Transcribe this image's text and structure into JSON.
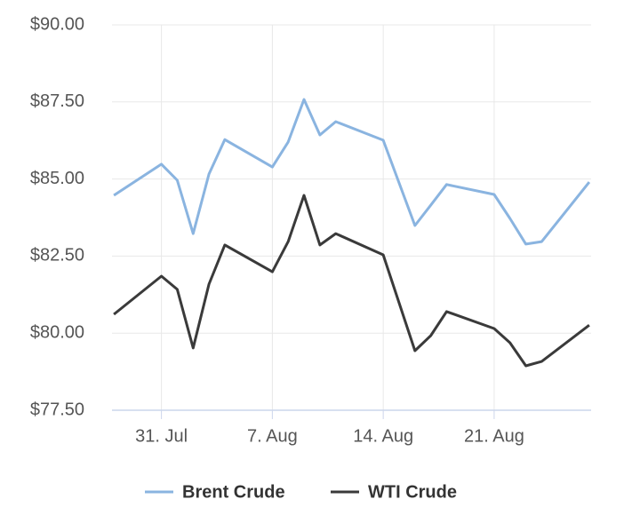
{
  "chart_data": {
    "type": "line",
    "x": [
      "07-28",
      "07-31",
      "08-01",
      "08-02",
      "08-03",
      "08-04",
      "08-07",
      "08-08",
      "08-09",
      "08-10",
      "08-11",
      "08-14",
      "08-16",
      "08-17",
      "08-18",
      "08-21",
      "08-22",
      "08-23",
      "08-24",
      "08-27"
    ],
    "xlim": [
      "07-28",
      "08-27"
    ],
    "xticks": [
      {
        "value": "07-31",
        "label": "31. Jul"
      },
      {
        "value": "08-07",
        "label": "7. Aug"
      },
      {
        "value": "08-14",
        "label": "14. Aug"
      },
      {
        "value": "08-21",
        "label": "21. Aug"
      }
    ],
    "ylim": [
      77.5,
      90
    ],
    "yticks": [
      {
        "value": 77.5,
        "label": "$77.50"
      },
      {
        "value": 80,
        "label": "$80.00"
      },
      {
        "value": 82.5,
        "label": "$82.50"
      },
      {
        "value": 85,
        "label": "$85.00"
      },
      {
        "value": 87.5,
        "label": "$87.50"
      },
      {
        "value": 90,
        "label": "$90.00"
      }
    ],
    "grid": true,
    "legend": "bottom",
    "series": [
      {
        "name": "Brent Crude",
        "color": "#8ab4e0",
        "values": [
          84.47,
          85.48,
          84.96,
          83.23,
          85.16,
          86.28,
          85.39,
          86.2,
          87.58,
          86.43,
          86.86,
          86.26,
          83.49,
          84.15,
          84.82,
          84.5,
          83.72,
          82.89,
          82.97,
          84.9
        ]
      },
      {
        "name": "WTI Crude",
        "color": "#3a3a3a",
        "values": [
          80.61,
          81.85,
          81.42,
          79.52,
          81.59,
          82.86,
          81.99,
          82.97,
          84.47,
          82.86,
          83.23,
          82.54,
          79.43,
          79.92,
          80.7,
          80.15,
          79.69,
          78.94,
          79.08,
          80.26
        ]
      }
    ]
  }
}
